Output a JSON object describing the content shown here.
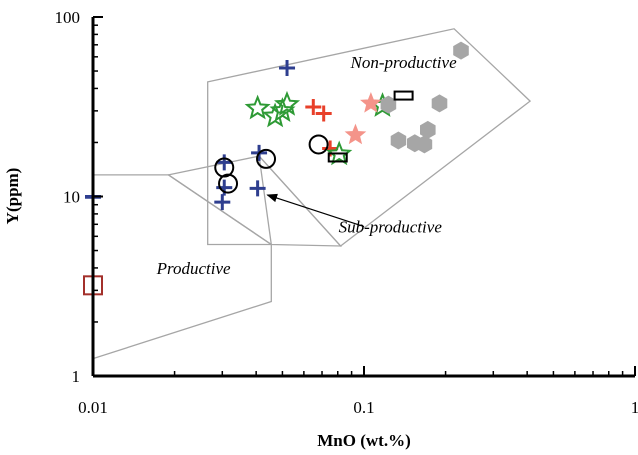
{
  "chart_data": {
    "type": "scatter",
    "x_scale": "log",
    "y_scale": "log",
    "xlim": [
      0.01,
      1
    ],
    "ylim": [
      1,
      100
    ],
    "xlabel": "MnO (wt.%)",
    "ylabel": "Y(ppm)",
    "x_ticks": [
      "0.01",
      "0.1",
      "1"
    ],
    "y_ticks": [
      "1",
      "10",
      "100"
    ],
    "grid": false,
    "legend": "none",
    "regions": [
      {
        "label": "Productive",
        "color": "#a6a6a6",
        "points": [
          [
            0.01,
            13.2
          ],
          [
            0.019,
            13.2
          ],
          [
            0.0455,
            5.4
          ],
          [
            0.0455,
            2.6
          ],
          [
            0.01,
            1.25
          ]
        ]
      },
      {
        "label": "Sub-productive",
        "color": "#a6a6a6",
        "points": [
          [
            0.019,
            13.2
          ],
          [
            0.041,
            16.8
          ],
          [
            0.082,
            5.3
          ],
          [
            0.0455,
            5.4
          ]
        ]
      },
      {
        "label": "Non-productive",
        "color": "#a6a6a6",
        "points": [
          [
            0.0265,
            43.5
          ],
          [
            0.0265,
            5.4
          ],
          [
            0.0455,
            5.4
          ],
          [
            0.041,
            16.8
          ],
          [
            0.082,
            5.3
          ],
          [
            0.41,
            34
          ],
          [
            0.215,
            86
          ],
          [
            0.0265,
            43.5
          ]
        ]
      }
    ],
    "annotations": [
      {
        "text": "Non-productive",
        "x": 0.14,
        "y": 52
      },
      {
        "text": "Productive",
        "x": 0.0235,
        "y": 3.7
      },
      {
        "text": "Sub-productive",
        "x": 0.125,
        "y": 6.3
      }
    ],
    "arrow": {
      "from": [
        0.1,
        6.8
      ],
      "to": [
        0.044,
        10.2
      ]
    },
    "series": [
      {
        "marker": "plus",
        "color": "#2e3e8f",
        "x": [
          0.01,
          0.01,
          0.0305,
          0.0305,
          0.03,
          0.041,
          0.0405,
          0.052
        ],
        "y": [
          10,
          9.9,
          15.5,
          11.2,
          9.3,
          17.5,
          11.1,
          52
        ]
      },
      {
        "marker": "plus",
        "color": "#e8402a",
        "x": [
          0.065,
          0.071,
          0.075
        ],
        "y": [
          31.5,
          29,
          18.5
        ]
      },
      {
        "marker": "circle",
        "color": "#000000",
        "x": [
          0.0305,
          0.0315,
          0.0435,
          0.068
        ],
        "y": [
          14.5,
          11.8,
          16.2,
          19.5
        ]
      },
      {
        "marker": "star",
        "color": "#2e9a35",
        "x": [
          0.0405,
          0.047,
          0.052,
          0.05,
          0.081,
          0.117
        ],
        "y": [
          31,
          28,
          32.5,
          30,
          17.2,
          32
        ]
      },
      {
        "marker": "star-filled",
        "color": "#f4948a",
        "x": [
          0.106,
          0.093
        ],
        "y": [
          33,
          22
        ]
      },
      {
        "marker": "hexagon",
        "color": "#a6a6a6",
        "x": [
          0.228,
          0.19,
          0.123,
          0.134,
          0.154,
          0.172,
          0.167
        ],
        "y": [
          65,
          33,
          32.5,
          20.5,
          19.8,
          23.5,
          19.5
        ]
      },
      {
        "marker": "rect-open",
        "color": "#000000",
        "x": [
          0.14,
          0.08
        ],
        "y": [
          36.5,
          16.5
        ]
      },
      {
        "marker": "square-open",
        "color": "#a3302b",
        "x": [
          0.01
        ],
        "y": [
          3.2
        ]
      }
    ]
  }
}
